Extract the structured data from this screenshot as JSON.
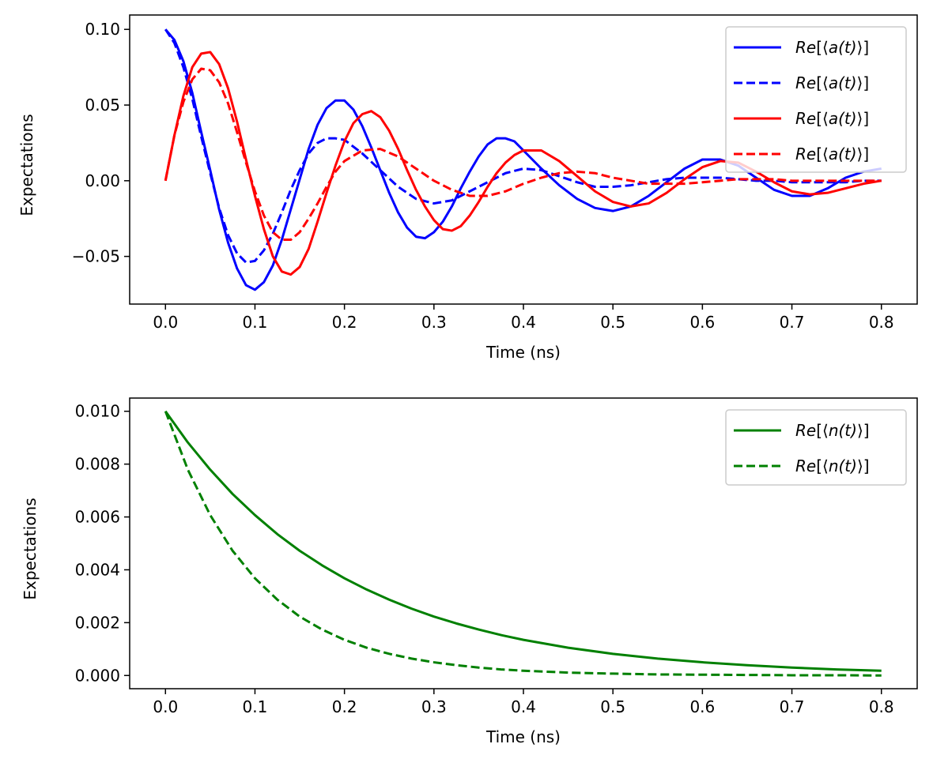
{
  "chart_data": [
    {
      "type": "line",
      "title": "",
      "xlabel": "Time (ns)",
      "ylabel": "Expectations",
      "xlim": [
        -0.04,
        0.84
      ],
      "ylim": [
        -0.0815,
        0.1095
      ],
      "grid": false,
      "legend_position": "top-right",
      "xticks": [
        0.0,
        0.1,
        0.2,
        0.3,
        0.4,
        0.5,
        0.6,
        0.7,
        0.8
      ],
      "xtick_labels": [
        "0.0",
        "0.1",
        "0.2",
        "0.3",
        "0.4",
        "0.5",
        "0.6",
        "0.7",
        "0.8"
      ],
      "yticks": [
        0.1,
        0.05,
        0.0,
        -0.05
      ],
      "ytick_labels": [
        "0.10",
        "0.05",
        "0.00",
        "−0.05"
      ],
      "series": [
        {
          "name": "Re[⟨a(t)⟩]",
          "legend_pre": "Re[⟨",
          "legend_var": "a(t)",
          "legend_post": "⟩]",
          "color": "#0000ff",
          "dash": "solid",
          "x": [
            0.0,
            0.01,
            0.02,
            0.03,
            0.04,
            0.05,
            0.06,
            0.07,
            0.08,
            0.09,
            0.1,
            0.11,
            0.12,
            0.13,
            0.14,
            0.15,
            0.16,
            0.17,
            0.18,
            0.19,
            0.2,
            0.21,
            0.22,
            0.23,
            0.24,
            0.25,
            0.26,
            0.27,
            0.28,
            0.29,
            0.3,
            0.31,
            0.32,
            0.33,
            0.34,
            0.35,
            0.36,
            0.37,
            0.38,
            0.39,
            0.4,
            0.42,
            0.44,
            0.46,
            0.48,
            0.5,
            0.52,
            0.54,
            0.56,
            0.58,
            0.6,
            0.62,
            0.64,
            0.66,
            0.68,
            0.7,
            0.72,
            0.74,
            0.76,
            0.78,
            0.8
          ],
          "y": [
            0.1,
            0.093,
            0.079,
            0.058,
            0.032,
            0.007,
            -0.019,
            -0.041,
            -0.058,
            -0.069,
            -0.072,
            -0.067,
            -0.056,
            -0.039,
            -0.019,
            0.001,
            0.021,
            0.037,
            0.048,
            0.053,
            0.053,
            0.047,
            0.036,
            0.022,
            0.007,
            -0.008,
            -0.021,
            -0.031,
            -0.037,
            -0.038,
            -0.034,
            -0.027,
            -0.017,
            -0.005,
            0.006,
            0.016,
            0.024,
            0.028,
            0.028,
            0.026,
            0.02,
            0.008,
            -0.003,
            -0.012,
            -0.018,
            -0.02,
            -0.017,
            -0.01,
            -0.001,
            0.008,
            0.014,
            0.014,
            0.01,
            0.002,
            -0.006,
            -0.01,
            -0.01,
            -0.005,
            0.002,
            0.006,
            0.008
          ]
        },
        {
          "name": "Re[⟨a(t)⟩]",
          "legend_pre": "Re[⟨",
          "legend_var": "a(t)",
          "legend_post": "⟩]",
          "color": "#0000ff",
          "dash": "dashed",
          "x": [
            0.0,
            0.01,
            0.02,
            0.03,
            0.04,
            0.05,
            0.06,
            0.07,
            0.08,
            0.09,
            0.1,
            0.11,
            0.12,
            0.13,
            0.14,
            0.15,
            0.16,
            0.17,
            0.18,
            0.19,
            0.2,
            0.22,
            0.24,
            0.26,
            0.28,
            0.3,
            0.32,
            0.34,
            0.36,
            0.38,
            0.4,
            0.42,
            0.44,
            0.46,
            0.48,
            0.5,
            0.52,
            0.54,
            0.56,
            0.58,
            0.6,
            0.62,
            0.64,
            0.66,
            0.68,
            0.7,
            0.72,
            0.74,
            0.76,
            0.78,
            0.8
          ],
          "y": [
            0.1,
            0.091,
            0.075,
            0.054,
            0.029,
            0.005,
            -0.018,
            -0.036,
            -0.048,
            -0.054,
            -0.053,
            -0.046,
            -0.035,
            -0.021,
            -0.006,
            0.007,
            0.018,
            0.025,
            0.028,
            0.028,
            0.027,
            0.018,
            0.007,
            -0.004,
            -0.012,
            -0.015,
            -0.013,
            -0.007,
            -0.001,
            0.005,
            0.008,
            0.007,
            0.003,
            -0.001,
            -0.004,
            -0.004,
            -0.003,
            -0.001,
            0.001,
            0.002,
            0.002,
            0.002,
            0.001,
            0.0,
            0.0,
            -0.001,
            -0.001,
            -0.001,
            -0.001,
            0.0,
            0.0
          ]
        },
        {
          "name": "Re[⟨a(t)⟩]",
          "legend_pre": "Re[⟨",
          "legend_var": "a(t)",
          "legend_post": "⟩]",
          "color": "#ff0000",
          "dash": "solid",
          "x": [
            0.0,
            0.01,
            0.02,
            0.03,
            0.04,
            0.05,
            0.06,
            0.07,
            0.08,
            0.09,
            0.1,
            0.11,
            0.12,
            0.13,
            0.14,
            0.15,
            0.16,
            0.17,
            0.18,
            0.19,
            0.2,
            0.21,
            0.22,
            0.23,
            0.24,
            0.25,
            0.26,
            0.27,
            0.28,
            0.29,
            0.3,
            0.31,
            0.32,
            0.33,
            0.34,
            0.35,
            0.36,
            0.37,
            0.38,
            0.39,
            0.4,
            0.42,
            0.44,
            0.46,
            0.48,
            0.5,
            0.52,
            0.54,
            0.56,
            0.58,
            0.6,
            0.62,
            0.64,
            0.66,
            0.68,
            0.7,
            0.72,
            0.74,
            0.76,
            0.78,
            0.8
          ],
          "y": [
            0.0,
            0.03,
            0.056,
            0.075,
            0.084,
            0.085,
            0.077,
            0.061,
            0.039,
            0.014,
            -0.01,
            -0.032,
            -0.05,
            -0.06,
            -0.062,
            -0.057,
            -0.045,
            -0.027,
            -0.008,
            0.01,
            0.026,
            0.038,
            0.044,
            0.046,
            0.042,
            0.033,
            0.021,
            0.007,
            -0.006,
            -0.017,
            -0.026,
            -0.032,
            -0.033,
            -0.03,
            -0.023,
            -0.014,
            -0.004,
            0.005,
            0.012,
            0.017,
            0.02,
            0.02,
            0.013,
            0.003,
            -0.007,
            -0.014,
            -0.017,
            -0.015,
            -0.008,
            0.001,
            0.009,
            0.013,
            0.012,
            0.006,
            -0.001,
            -0.007,
            -0.009,
            -0.008,
            -0.005,
            -0.002,
            0.0
          ]
        },
        {
          "name": "Re[⟨a(t)⟩]",
          "legend_pre": "Re[⟨",
          "legend_var": "a(t)",
          "legend_post": "⟩]",
          "color": "#ff0000",
          "dash": "dashed",
          "x": [
            0.0,
            0.01,
            0.02,
            0.03,
            0.04,
            0.05,
            0.06,
            0.07,
            0.08,
            0.09,
            0.1,
            0.11,
            0.12,
            0.13,
            0.14,
            0.15,
            0.16,
            0.17,
            0.18,
            0.19,
            0.2,
            0.22,
            0.24,
            0.26,
            0.28,
            0.3,
            0.32,
            0.34,
            0.36,
            0.38,
            0.4,
            0.42,
            0.44,
            0.46,
            0.48,
            0.5,
            0.52,
            0.54,
            0.56,
            0.58,
            0.6,
            0.62,
            0.64,
            0.66,
            0.68,
            0.7,
            0.72,
            0.74,
            0.76,
            0.78,
            0.8
          ],
          "y": [
            0.0,
            0.03,
            0.052,
            0.067,
            0.074,
            0.073,
            0.065,
            0.051,
            0.032,
            0.012,
            -0.007,
            -0.023,
            -0.034,
            -0.039,
            -0.039,
            -0.034,
            -0.025,
            -0.015,
            -0.004,
            0.006,
            0.013,
            0.02,
            0.021,
            0.016,
            0.008,
            0.0,
            -0.006,
            -0.01,
            -0.01,
            -0.007,
            -0.002,
            0.002,
            0.005,
            0.006,
            0.005,
            0.002,
            0.0,
            -0.002,
            -0.002,
            -0.002,
            -0.001,
            0.0,
            0.001,
            0.001,
            0.001,
            0.0,
            0.0,
            0.0,
            0.0,
            0.0,
            0.0
          ]
        }
      ]
    },
    {
      "type": "line",
      "title": "",
      "xlabel": "Time (ns)",
      "ylabel": "Expectations",
      "xlim": [
        -0.04,
        0.84
      ],
      "ylim": [
        -0.0005,
        0.0105
      ],
      "grid": false,
      "legend_position": "top-right",
      "xticks": [
        0.0,
        0.1,
        0.2,
        0.3,
        0.4,
        0.5,
        0.6,
        0.7,
        0.8
      ],
      "xtick_labels": [
        "0.0",
        "0.1",
        "0.2",
        "0.3",
        "0.4",
        "0.5",
        "0.6",
        "0.7",
        "0.8"
      ],
      "yticks": [
        0.01,
        0.008,
        0.006,
        0.004,
        0.002,
        0.0
      ],
      "ytick_labels": [
        "0.010",
        "0.008",
        "0.006",
        "0.004",
        "0.002",
        "0.000"
      ],
      "series": [
        {
          "name": "Re[⟨n(t)⟩]",
          "legend_pre": "Re[⟨",
          "legend_var": "n(t)",
          "legend_post": "⟩]",
          "color": "#008000",
          "dash": "solid",
          "x": [
            0.0,
            0.025,
            0.05,
            0.075,
            0.1,
            0.125,
            0.15,
            0.175,
            0.2,
            0.225,
            0.25,
            0.275,
            0.3,
            0.325,
            0.35,
            0.375,
            0.4,
            0.45,
            0.5,
            0.55,
            0.6,
            0.65,
            0.7,
            0.75,
            0.8
          ],
          "y": [
            0.01,
            0.00882,
            0.00779,
            0.00687,
            0.00607,
            0.00535,
            0.00472,
            0.00417,
            0.00368,
            0.00325,
            0.00287,
            0.00253,
            0.00223,
            0.00197,
            0.00174,
            0.00153,
            0.00135,
            0.00105,
            0.00082,
            0.00064,
            0.0005,
            0.00039,
            0.0003,
            0.00023,
            0.00018
          ]
        },
        {
          "name": "Re[⟨n(t)⟩]",
          "legend_pre": "Re[⟨",
          "legend_var": "n(t)",
          "legend_post": "⟩]",
          "color": "#008000",
          "dash": "dashed",
          "x": [
            0.0,
            0.025,
            0.05,
            0.075,
            0.1,
            0.125,
            0.15,
            0.175,
            0.2,
            0.225,
            0.25,
            0.275,
            0.3,
            0.325,
            0.35,
            0.375,
            0.4,
            0.45,
            0.5,
            0.55,
            0.6,
            0.65,
            0.7,
            0.75,
            0.8
          ],
          "y": [
            0.01,
            0.00779,
            0.00607,
            0.00472,
            0.00368,
            0.00287,
            0.00223,
            0.00174,
            0.00135,
            0.00105,
            0.00082,
            0.00064,
            0.0005,
            0.00039,
            0.0003,
            0.00023,
            0.00018,
            0.00011,
            7e-05,
            4e-05,
            3e-05,
            2e-05,
            1e-05,
            1e-05,
            0.0
          ]
        }
      ]
    }
  ]
}
